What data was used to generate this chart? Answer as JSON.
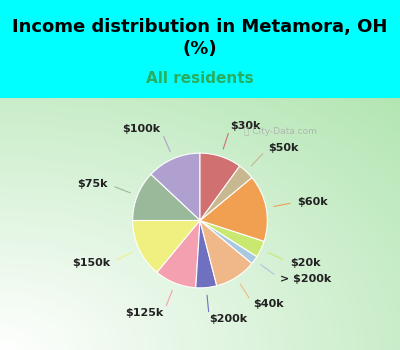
{
  "title": "Income distribution in Metamora, OH\n(%)",
  "subtitle": "All residents",
  "bg_cyan": "#00FFFF",
  "bg_chart_color1": "#f0faf5",
  "bg_chart_color2": "#c8edd8",
  "labels": [
    "$100k",
    "$75k",
    "$150k",
    "$125k",
    "$200k",
    "$40k",
    "> $200k",
    "$20k",
    "$60k",
    "$50k",
    "$30k"
  ],
  "sizes": [
    13,
    12,
    14,
    10,
    5,
    10,
    2,
    4,
    16,
    4,
    10
  ],
  "colors": [
    "#b0a0d0",
    "#9ab89a",
    "#f0f080",
    "#f4a0b0",
    "#7070c0",
    "#f0b888",
    "#a8c8e0",
    "#c8e870",
    "#f0a050",
    "#c8b890",
    "#d07070"
  ],
  "startangle": 90,
  "title_fontsize": 13,
  "subtitle_fontsize": 11,
  "label_fontsize": 8
}
